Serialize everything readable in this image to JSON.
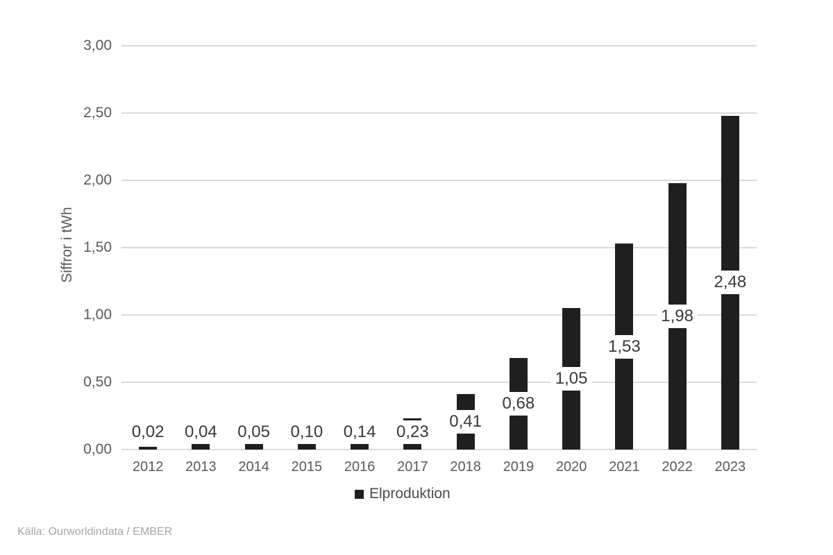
{
  "chart_data": {
    "type": "bar",
    "title": "",
    "categories": [
      "2012",
      "2013",
      "2014",
      "2015",
      "2016",
      "2017",
      "2018",
      "2019",
      "2020",
      "2021",
      "2022",
      "2023"
    ],
    "series": [
      {
        "name": "Elproduktion",
        "values": [
          0.02,
          0.04,
          0.05,
          0.1,
          0.14,
          0.23,
          0.41,
          0.68,
          1.05,
          1.53,
          1.98,
          2.48
        ],
        "value_labels": [
          "0,02",
          "0,04",
          "0,05",
          "0,10",
          "0,14",
          "0,23",
          "0,41",
          "0,68",
          "1,05",
          "1,53",
          "1,98",
          "2,48"
        ]
      }
    ],
    "xlabel": "",
    "ylabel": "Siffror i tWh",
    "ylim": [
      0,
      3
    ],
    "ytick_values": [
      0,
      0.5,
      1,
      1.5,
      2,
      2.5,
      3
    ],
    "ytick_labels": [
      "0,00",
      "0,50",
      "1,00",
      "1,50",
      "2,00",
      "2,50",
      "3,00"
    ],
    "grid": true,
    "legend_position": "bottom",
    "colors": {
      "bar": "#1f1f1f",
      "gridline": "#d9d9d9",
      "axis_text": "#595959",
      "value_label_text": "#383838",
      "legend_text": "#4d4d4d",
      "source_text": "#a6a6a6",
      "background": "#ffffff"
    }
  },
  "legend": {
    "label": "Elproduktion"
  },
  "source": {
    "text": "Källa: Ourworldindata / EMBER"
  }
}
